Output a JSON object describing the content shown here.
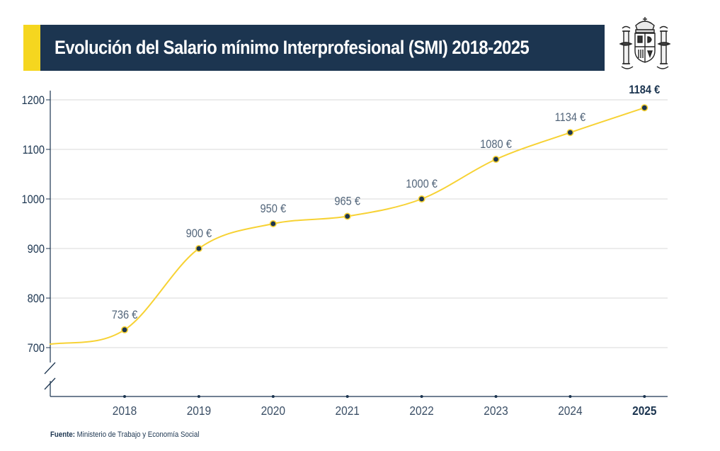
{
  "header": {
    "title": "Evolución del Salario mínimo Interprofesional (SMI) 2018-2025",
    "accent_color": "#f5d61f",
    "bar_color": "#1c3550",
    "emblem": "spain-coat-of-arms-icon"
  },
  "chart_data": {
    "type": "line",
    "title": "Evolución del Salario mínimo Interprofesional (SMI) 2018-2025",
    "categories": [
      "2018",
      "2019",
      "2020",
      "2021",
      "2022",
      "2023",
      "2024",
      "2025"
    ],
    "series": [
      {
        "values": [
          736,
          900,
          950,
          965,
          1000,
          1080,
          1134,
          1184
        ],
        "labels": [
          "736 €",
          "900 €",
          "950 €",
          "965 €",
          "1000 €",
          "1080 €",
          "1134 €",
          "1184 €"
        ],
        "color": "#f7d234"
      }
    ],
    "y_ticks": [
      "700",
      "800",
      "900",
      "1000",
      "1100",
      "1200"
    ],
    "ylim": [
      700,
      1200
    ],
    "axis_break": true,
    "grid": true,
    "highlight_last": true,
    "xlabel": "",
    "ylabel": ""
  },
  "footer": {
    "source_label": "Fuente:",
    "source_text": "Ministerio de Trabajo y Economía Social"
  }
}
